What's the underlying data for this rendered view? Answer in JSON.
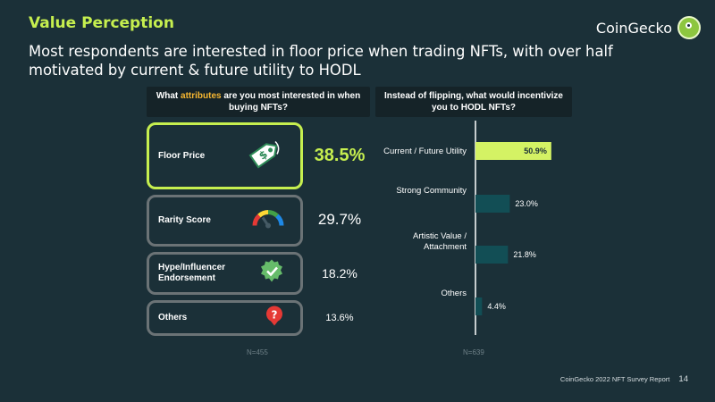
{
  "slide": {
    "title": "Value Perception",
    "brand": "CoinGecko",
    "headline": "Most respondents are interested in floor price when trading NFTs, with over half motivated by current & future utility to HODL"
  },
  "left_panel": {
    "question_pre": "What ",
    "question_highlight": "attributes",
    "question_post": " are you most interested in when buying NFTs?",
    "sample": "N=455",
    "items": [
      {
        "label": "Floor Price",
        "value": "38.5%",
        "icon": "price-tag-icon"
      },
      {
        "label": "Rarity Score",
        "value": "29.7%",
        "icon": "gauge-icon"
      },
      {
        "label": "Hype/Influencer Endorsement",
        "value": "18.2%",
        "icon": "verified-badge-icon"
      },
      {
        "label": "Others",
        "value": "13.6%",
        "icon": "question-icon"
      }
    ]
  },
  "right_panel": {
    "question": "Instead of flipping, what would incentivize you to HODL NFTs?",
    "sample": "N=639"
  },
  "chart_data": {
    "type": "bar",
    "orientation": "horizontal",
    "categories": [
      "Current / Future Utility",
      "Strong Community",
      "Artistic Value / Attachment",
      "Others"
    ],
    "values": [
      50.9,
      23.0,
      21.8,
      4.4
    ],
    "value_labels": [
      "50.9%",
      "23.0%",
      "21.8%",
      "4.4%"
    ],
    "unit": "%",
    "colors": {
      "highlight": "#d4f264",
      "default": "#124e55"
    }
  },
  "footer": {
    "report": "CoinGecko 2022 NFT Survey Report",
    "page": "14"
  },
  "colors": {
    "background": "#1b3038",
    "accent": "#c6ef4f",
    "highlight_text": "#f7b731"
  }
}
